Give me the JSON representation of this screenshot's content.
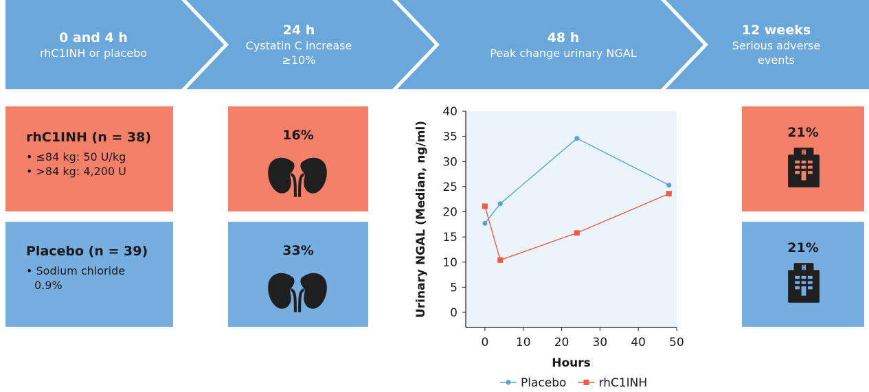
{
  "timeline": [
    {
      "time": "0 and 4 h",
      "desc": "rhC1INH or placebo"
    },
    {
      "time": "24 h",
      "desc": "Cystatin C increase ≥10%"
    },
    {
      "time": "48 h",
      "desc": "Peak change urinary NGAL"
    },
    {
      "time": "12 weeks",
      "desc": "Serious adverse events"
    }
  ],
  "arms": {
    "treatment": {
      "title": "rhC1INH (n = 38)",
      "items": [
        "• ≤84 kg: 50 U/kg",
        "• >84 kg: 4,200 U"
      ]
    },
    "placebo": {
      "title": "Placebo (n = 39)",
      "items": [
        "• Sodium chloride 0.9%"
      ]
    }
  },
  "cystatin": {
    "treatment": "16%",
    "placebo": "33%",
    "icon": "kidney-icon"
  },
  "sae": {
    "treatment": "21%",
    "placebo": "21%",
    "icon": "hospital-icon"
  },
  "colors": {
    "chevron": "#6aa8dc",
    "treatment": "#f4806a",
    "placebo": "#76aee0",
    "plot_bg": "#ebf3fb",
    "placebo_line": "#5aa4d8",
    "rhc1inh_line": "#ee5a44",
    "icon": "#1f1f1f"
  },
  "chart_data": {
    "type": "line",
    "xlabel": "Hours",
    "ylabel": "Urinary NGAL (Median, ng/ml)",
    "xlim": [
      -5,
      50
    ],
    "ylim": [
      -3,
      40
    ],
    "xticks": [
      0,
      10,
      20,
      30,
      40,
      50
    ],
    "yticks": [
      0,
      5,
      10,
      15,
      20,
      25,
      30,
      35,
      40
    ],
    "legend_position": "bottom",
    "series": [
      {
        "name": "Placebo",
        "marker": "circle",
        "color": "#5aa4d8",
        "x": [
          0,
          4,
          24,
          48
        ],
        "y": [
          17.7,
          21.6,
          34.6,
          25.3
        ]
      },
      {
        "name": "rhC1INH",
        "marker": "square",
        "color": "#ee5a44",
        "x": [
          0,
          4,
          24,
          48
        ],
        "y": [
          21.1,
          10.4,
          15.8,
          23.6
        ]
      }
    ]
  }
}
